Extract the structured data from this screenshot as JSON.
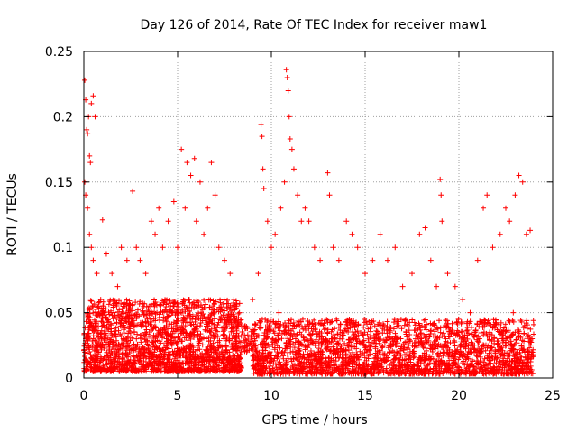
{
  "chart_data": {
    "type": "scatter",
    "title": "Day 126 of 2014, Rate Of TEC Index for receiver maw1",
    "xlabel": "GPS time / hours",
    "ylabel": "ROTI / TECUs",
    "xlim": [
      0,
      25
    ],
    "ylim": [
      0,
      0.25
    ],
    "grid": true,
    "marker": "+",
    "color": "#ff0000",
    "x_ticks": [
      {
        "value": 0,
        "label": "0"
      },
      {
        "value": 5,
        "label": "5"
      },
      {
        "value": 10,
        "label": "10"
      },
      {
        "value": 15,
        "label": "15"
      },
      {
        "value": 20,
        "label": "20"
      },
      {
        "value": 25,
        "label": "25"
      }
    ],
    "y_ticks": [
      {
        "value": 0,
        "label": "0"
      },
      {
        "value": 0.05,
        "label": "0.05"
      },
      {
        "value": 0.1,
        "label": "0.1"
      },
      {
        "value": 0.15,
        "label": "0.15"
      },
      {
        "value": 0.2,
        "label": "0.2"
      },
      {
        "value": 0.25,
        "label": "0.25"
      }
    ],
    "series": [
      {
        "name": "ROTI",
        "points": [
          [
            0.05,
            0.228
          ],
          [
            0.1,
            0.213
          ],
          [
            0.15,
            0.19
          ],
          [
            0.2,
            0.187
          ],
          [
            0.25,
            0.2
          ],
          [
            0.3,
            0.17
          ],
          [
            0.35,
            0.165
          ],
          [
            0.4,
            0.21
          ],
          [
            0.5,
            0.216
          ],
          [
            0.6,
            0.2
          ],
          [
            0.05,
            0.15
          ],
          [
            0.1,
            0.14
          ],
          [
            0.2,
            0.13
          ],
          [
            0.3,
            0.11
          ],
          [
            0.4,
            0.1
          ],
          [
            0.5,
            0.09
          ],
          [
            0.7,
            0.08
          ],
          [
            0.9,
            0.06
          ],
          [
            1.0,
            0.121
          ],
          [
            1.2,
            0.095
          ],
          [
            1.5,
            0.08
          ],
          [
            1.8,
            0.07
          ],
          [
            2.0,
            0.1
          ],
          [
            2.3,
            0.09
          ],
          [
            2.6,
            0.143
          ],
          [
            2.8,
            0.1
          ],
          [
            3.0,
            0.09
          ],
          [
            3.3,
            0.08
          ],
          [
            3.6,
            0.12
          ],
          [
            3.8,
            0.11
          ],
          [
            4.0,
            0.13
          ],
          [
            4.2,
            0.1
          ],
          [
            4.5,
            0.12
          ],
          [
            4.8,
            0.135
          ],
          [
            5.0,
            0.1
          ],
          [
            5.2,
            0.175
          ],
          [
            5.4,
            0.13
          ],
          [
            5.5,
            0.165
          ],
          [
            5.7,
            0.155
          ],
          [
            5.9,
            0.168
          ],
          [
            6.0,
            0.12
          ],
          [
            6.2,
            0.15
          ],
          [
            6.4,
            0.11
          ],
          [
            6.6,
            0.13
          ],
          [
            6.8,
            0.165
          ],
          [
            7.0,
            0.14
          ],
          [
            7.2,
            0.1
          ],
          [
            7.5,
            0.09
          ],
          [
            7.8,
            0.08
          ],
          [
            8.0,
            0.06
          ],
          [
            8.3,
            0.05
          ],
          [
            8.6,
            0.04
          ],
          [
            9.0,
            0.06
          ],
          [
            9.3,
            0.08
          ],
          [
            9.45,
            0.194
          ],
          [
            9.5,
            0.185
          ],
          [
            9.55,
            0.16
          ],
          [
            9.6,
            0.145
          ],
          [
            9.8,
            0.12
          ],
          [
            10.0,
            0.1
          ],
          [
            10.2,
            0.11
          ],
          [
            10.5,
            0.13
          ],
          [
            10.7,
            0.15
          ],
          [
            10.8,
            0.236
          ],
          [
            10.85,
            0.23
          ],
          [
            10.9,
            0.22
          ],
          [
            10.95,
            0.2
          ],
          [
            11.0,
            0.183
          ],
          [
            11.1,
            0.175
          ],
          [
            11.2,
            0.16
          ],
          [
            11.4,
            0.14
          ],
          [
            11.6,
            0.12
          ],
          [
            11.8,
            0.13
          ],
          [
            12.0,
            0.12
          ],
          [
            12.3,
            0.1
          ],
          [
            12.6,
            0.09
          ],
          [
            13.0,
            0.157
          ],
          [
            13.1,
            0.14
          ],
          [
            13.3,
            0.1
          ],
          [
            13.6,
            0.09
          ],
          [
            14.0,
            0.12
          ],
          [
            14.3,
            0.11
          ],
          [
            14.6,
            0.1
          ],
          [
            15.0,
            0.08
          ],
          [
            15.4,
            0.09
          ],
          [
            15.8,
            0.11
          ],
          [
            16.2,
            0.09
          ],
          [
            16.6,
            0.1
          ],
          [
            17.0,
            0.07
          ],
          [
            17.5,
            0.08
          ],
          [
            17.9,
            0.11
          ],
          [
            18.2,
            0.115
          ],
          [
            18.5,
            0.09
          ],
          [
            18.8,
            0.07
          ],
          [
            19.0,
            0.152
          ],
          [
            19.05,
            0.14
          ],
          [
            19.1,
            0.12
          ],
          [
            19.4,
            0.08
          ],
          [
            19.8,
            0.07
          ],
          [
            20.2,
            0.06
          ],
          [
            20.6,
            0.05
          ],
          [
            21.0,
            0.09
          ],
          [
            21.3,
            0.13
          ],
          [
            21.5,
            0.14
          ],
          [
            21.8,
            0.1
          ],
          [
            22.2,
            0.11
          ],
          [
            22.5,
            0.13
          ],
          [
            22.7,
            0.12
          ],
          [
            23.0,
            0.14
          ],
          [
            23.2,
            0.155
          ],
          [
            23.4,
            0.15
          ],
          [
            23.6,
            0.11
          ],
          [
            23.8,
            0.113
          ],
          [
            0.1,
            0.03
          ],
          [
            0.3,
            0.02
          ],
          [
            0.6,
            0.04
          ],
          [
            1.1,
            0.03
          ],
          [
            1.6,
            0.05
          ],
          [
            2.1,
            0.03
          ],
          [
            2.7,
            0.04
          ],
          [
            3.2,
            0.02
          ],
          [
            3.9,
            0.05
          ],
          [
            4.4,
            0.03
          ],
          [
            4.9,
            0.04
          ],
          [
            5.6,
            0.06
          ],
          [
            6.3,
            0.03
          ],
          [
            6.9,
            0.05
          ],
          [
            7.4,
            0.02
          ],
          [
            7.9,
            0.03
          ],
          [
            8.4,
            0.02
          ],
          [
            9.1,
            0.03
          ],
          [
            9.9,
            0.04
          ],
          [
            10.4,
            0.05
          ],
          [
            11.3,
            0.03
          ],
          [
            11.9,
            0.04
          ],
          [
            12.5,
            0.02
          ],
          [
            13.2,
            0.03
          ],
          [
            13.8,
            0.02
          ],
          [
            14.4,
            0.03
          ],
          [
            15.1,
            0.02
          ],
          [
            15.7,
            0.03
          ],
          [
            16.3,
            0.02
          ],
          [
            16.9,
            0.03
          ],
          [
            17.4,
            0.02
          ],
          [
            18.0,
            0.03
          ],
          [
            18.6,
            0.02
          ],
          [
            19.3,
            0.03
          ],
          [
            19.9,
            0.02
          ],
          [
            20.5,
            0.02
          ],
          [
            21.1,
            0.03
          ],
          [
            21.7,
            0.04
          ],
          [
            22.3,
            0.03
          ],
          [
            22.9,
            0.05
          ],
          [
            23.5,
            0.04
          ],
          [
            23.9,
            0.03
          ]
        ]
      }
    ],
    "noise_bands": [
      {
        "x_start": 0,
        "x_end": 8.4,
        "y_base": 0.005,
        "y_top": 0.06,
        "density": 1800
      },
      {
        "x_start": 9.0,
        "x_end": 24.0,
        "y_base": 0.003,
        "y_top": 0.045,
        "density": 2200
      },
      {
        "x_start": 8.4,
        "x_end": 9.0,
        "y_base": 0.02,
        "y_top": 0.04,
        "density": 40
      }
    ]
  }
}
